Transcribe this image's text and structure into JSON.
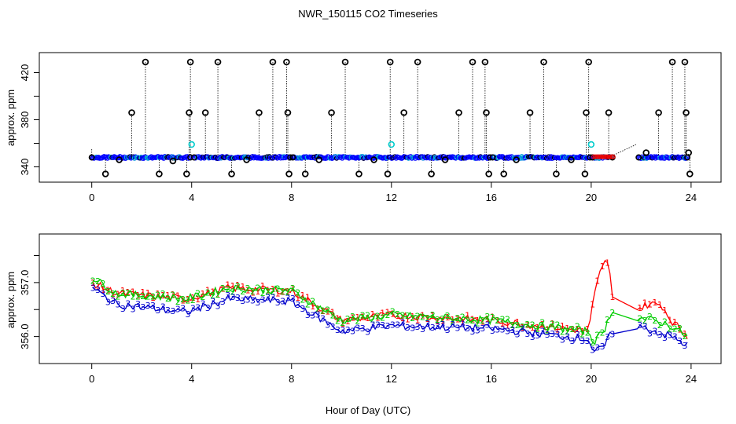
{
  "title": "NWR_150115  CO2 Timeseries",
  "xlabel": "Hour of Day (UTC)",
  "chart_data": [
    {
      "type": "scatter",
      "name": "raw",
      "ylabel": "approx. ppm",
      "xlim": [
        -2.1,
        25.2
      ],
      "ylim": [
        327,
        437
      ],
      "x_ticks": [
        "0",
        "4",
        "8",
        "12",
        "16",
        "20",
        "24"
      ],
      "y_ticks": [
        "340",
        "380",
        "420"
      ],
      "baseline": 348,
      "spikes": [
        {
          "x": 0.55,
          "y": 334
        },
        {
          "x": 1.1,
          "y": 346
        },
        {
          "x": 1.6,
          "y": 386
        },
        {
          "x": 2.15,
          "y": 429
        },
        {
          "x": 2.7,
          "y": 334
        },
        {
          "x": 3.25,
          "y": 345
        },
        {
          "x": 3.8,
          "y": 334
        },
        {
          "x": 3.9,
          "y": 386
        },
        {
          "x": 3.95,
          "y": 429
        },
        {
          "x": 4.55,
          "y": 386
        },
        {
          "x": 5.05,
          "y": 429
        },
        {
          "x": 5.6,
          "y": 334
        },
        {
          "x": 6.2,
          "y": 346
        },
        {
          "x": 6.7,
          "y": 386
        },
        {
          "x": 7.25,
          "y": 429
        },
        {
          "x": 7.8,
          "y": 429
        },
        {
          "x": 7.85,
          "y": 386
        },
        {
          "x": 7.9,
          "y": 334
        },
        {
          "x": 8.55,
          "y": 334
        },
        {
          "x": 9.1,
          "y": 346
        },
        {
          "x": 9.6,
          "y": 386
        },
        {
          "x": 10.15,
          "y": 429
        },
        {
          "x": 10.7,
          "y": 334
        },
        {
          "x": 11.3,
          "y": 346
        },
        {
          "x": 11.85,
          "y": 334
        },
        {
          "x": 11.95,
          "y": 429
        },
        {
          "x": 12.5,
          "y": 386
        },
        {
          "x": 13.05,
          "y": 429
        },
        {
          "x": 13.6,
          "y": 334
        },
        {
          "x": 14.15,
          "y": 346
        },
        {
          "x": 14.7,
          "y": 386
        },
        {
          "x": 15.25,
          "y": 429
        },
        {
          "x": 15.75,
          "y": 429
        },
        {
          "x": 15.8,
          "y": 386
        },
        {
          "x": 15.9,
          "y": 334
        },
        {
          "x": 16.5,
          "y": 334
        },
        {
          "x": 17.0,
          "y": 346
        },
        {
          "x": 17.55,
          "y": 386
        },
        {
          "x": 18.1,
          "y": 429
        },
        {
          "x": 18.6,
          "y": 334
        },
        {
          "x": 19.2,
          "y": 346
        },
        {
          "x": 19.75,
          "y": 334
        },
        {
          "x": 19.8,
          "y": 386
        },
        {
          "x": 19.9,
          "y": 429
        },
        {
          "x": 20.7,
          "y": 386
        },
        {
          "x": 22.2,
          "y": 352
        },
        {
          "x": 22.7,
          "y": 386
        },
        {
          "x": 23.25,
          "y": 429
        },
        {
          "x": 23.75,
          "y": 429
        },
        {
          "x": 23.8,
          "y": 386
        },
        {
          "x": 23.9,
          "y": 352
        },
        {
          "x": 23.95,
          "y": 334
        }
      ],
      "cyan_points": [
        {
          "x": 4.0,
          "y": 359
        },
        {
          "x": 12.0,
          "y": 359
        },
        {
          "x": 20.0,
          "y": 359
        }
      ],
      "baseline_segments": [
        [
          0,
          3.95
        ],
        [
          4.1,
          7.95
        ],
        [
          8.05,
          15.95
        ],
        [
          16.05,
          19.95
        ],
        [
          20.05,
          20.85
        ],
        [
          21.9,
          23.85
        ]
      ],
      "red_segment": [
        20.1,
        20.9
      ],
      "dotted_gap": [
        [
          20.9,
          350
        ],
        [
          21.8,
          359
        ]
      ]
    },
    {
      "type": "line",
      "name": "averages",
      "ylabel": "approx. ppm",
      "xlim": [
        -2.1,
        25.2
      ],
      "ylim": [
        355.5,
        357.9
      ],
      "x_ticks": [
        "0",
        "4",
        "8",
        "12",
        "16",
        "20",
        "24"
      ],
      "y_ticks": [
        "356.0",
        "357.0"
      ],
      "series": [
        {
          "name": "1",
          "color": "#ff0000",
          "knots": [
            [
              0,
              357.0
            ],
            [
              1,
              356.8
            ],
            [
              3.8,
              356.7
            ],
            [
              5.5,
              356.9
            ],
            [
              8,
              356.85
            ],
            [
              10,
              356.3
            ],
            [
              12,
              356.4
            ],
            [
              16,
              356.3
            ],
            [
              19.9,
              356.1
            ],
            [
              20.1,
              356.7
            ],
            [
              20.3,
              357.1
            ],
            [
              20.5,
              357.4
            ],
            [
              20.7,
              357.3
            ],
            [
              20.85,
              356.8
            ],
            [
              21.8,
              356.5
            ],
            [
              22.3,
              356.6
            ],
            [
              22.5,
              356.6
            ],
            [
              22.8,
              356.6
            ],
            [
              23.2,
              356.3
            ],
            [
              24,
              355.95
            ]
          ]
        },
        {
          "name": "2",
          "color": "#00cc00",
          "knots": [
            [
              0,
              357.1
            ],
            [
              1,
              356.8
            ],
            [
              3.8,
              356.7
            ],
            [
              5.5,
              356.9
            ],
            [
              8,
              356.85
            ],
            [
              10,
              356.3
            ],
            [
              12,
              356.4
            ],
            [
              16,
              356.3
            ],
            [
              19.9,
              356.1
            ],
            [
              20.1,
              355.9
            ],
            [
              20.5,
              356.1
            ],
            [
              20.85,
              356.5
            ],
            [
              21.8,
              356.35
            ],
            [
              22.5,
              356.3
            ],
            [
              23.2,
              356.2
            ],
            [
              24,
              355.95
            ]
          ]
        },
        {
          "name": "3",
          "color": "#0000cc",
          "knots": [
            [
              0,
              356.9
            ],
            [
              1,
              356.6
            ],
            [
              3.8,
              356.45
            ],
            [
              5.5,
              356.7
            ],
            [
              8,
              356.65
            ],
            [
              10,
              356.1
            ],
            [
              12,
              356.2
            ],
            [
              16,
              356.15
            ],
            [
              19.9,
              355.95
            ],
            [
              20.1,
              355.7
            ],
            [
              20.5,
              355.8
            ],
            [
              20.85,
              356.1
            ],
            [
              21.8,
              356.2
            ],
            [
              22.5,
              356.1
            ],
            [
              23.2,
              356.0
            ],
            [
              24,
              355.8
            ]
          ]
        }
      ]
    }
  ]
}
